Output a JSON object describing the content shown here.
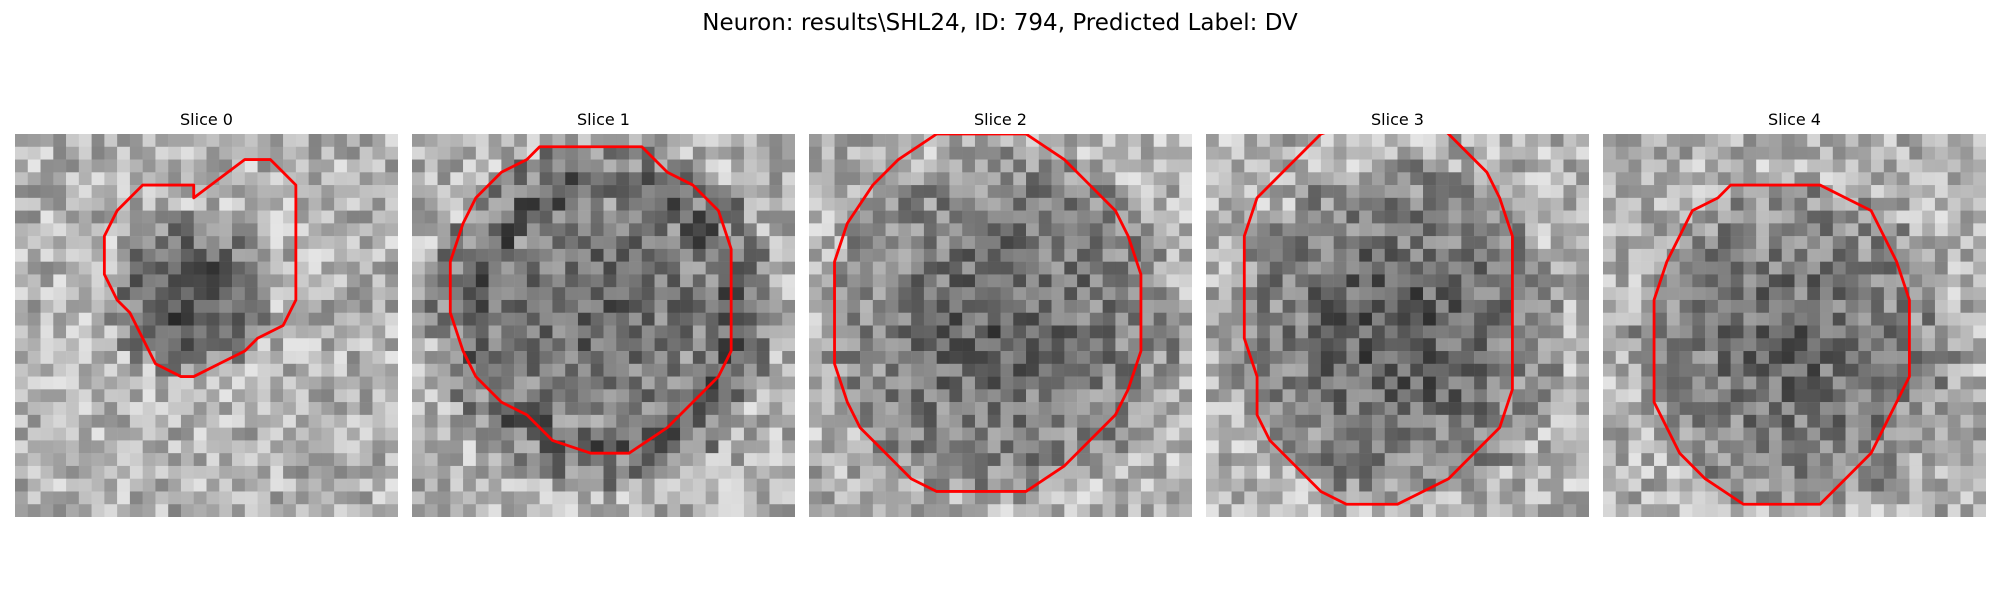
{
  "figure": {
    "title": "Neuron: results\\SHL24, ID: 794, Predicted Label: DV",
    "contour_color": "#ff0000",
    "colormap": "gray",
    "panels": [
      {
        "title": "Slice 0",
        "seed": 11,
        "dark_center": [
          0.46,
          0.42
        ],
        "dark_radius": 0.22,
        "dark_strength": 0.35,
        "ring": false,
        "contour": [
          [
            14,
            5
          ],
          [
            18,
            2
          ],
          [
            20,
            2
          ],
          [
            21,
            3
          ],
          [
            22,
            4
          ],
          [
            22,
            8
          ],
          [
            22,
            11
          ],
          [
            22,
            13
          ],
          [
            21,
            15
          ],
          [
            19,
            16
          ],
          [
            18,
            17
          ],
          [
            16,
            18
          ],
          [
            14,
            19
          ],
          [
            13,
            19
          ],
          [
            11,
            18
          ],
          [
            10,
            16
          ],
          [
            9,
            14
          ],
          [
            8,
            13
          ],
          [
            7,
            11
          ],
          [
            7,
            8
          ],
          [
            8,
            6
          ],
          [
            10,
            4
          ],
          [
            12,
            4
          ],
          [
            14,
            4
          ]
        ]
      },
      {
        "title": "Slice 1",
        "seed": 23,
        "dark_center": [
          0.5,
          0.47
        ],
        "dark_radius": 0.38,
        "dark_strength": 0.2,
        "ring": true,
        "contour": [
          [
            10,
            1
          ],
          [
            15,
            1
          ],
          [
            18,
            1
          ],
          [
            20,
            3
          ],
          [
            22,
            4
          ],
          [
            24,
            6
          ],
          [
            25,
            9
          ],
          [
            25,
            13
          ],
          [
            25,
            17
          ],
          [
            24,
            19
          ],
          [
            22,
            21
          ],
          [
            20,
            23
          ],
          [
            17,
            25
          ],
          [
            14,
            25
          ],
          [
            11,
            24
          ],
          [
            9,
            22
          ],
          [
            7,
            21
          ],
          [
            5,
            19
          ],
          [
            4,
            17
          ],
          [
            3,
            14
          ],
          [
            3,
            10
          ],
          [
            4,
            7
          ],
          [
            5,
            5
          ],
          [
            7,
            3
          ],
          [
            9,
            2
          ]
        ]
      },
      {
        "title": "Slice 2",
        "seed": 37,
        "dark_center": [
          0.5,
          0.5
        ],
        "dark_radius": 0.46,
        "dark_strength": 0.22,
        "ring": false,
        "contour": [
          [
            12,
            0
          ],
          [
            17,
            0
          ],
          [
            20,
            2
          ],
          [
            22,
            4
          ],
          [
            24,
            6
          ],
          [
            25,
            8
          ],
          [
            26,
            11
          ],
          [
            26,
            14
          ],
          [
            26,
            17
          ],
          [
            25,
            20
          ],
          [
            24,
            22
          ],
          [
            22,
            24
          ],
          [
            20,
            26
          ],
          [
            17,
            28
          ],
          [
            13,
            28
          ],
          [
            10,
            28
          ],
          [
            8,
            27
          ],
          [
            6,
            25
          ],
          [
            4,
            23
          ],
          [
            3,
            21
          ],
          [
            2,
            18
          ],
          [
            2,
            14
          ],
          [
            2,
            10
          ],
          [
            3,
            7
          ],
          [
            5,
            4
          ],
          [
            7,
            2
          ],
          [
            10,
            0
          ]
        ]
      },
      {
        "title": "Slice 3",
        "seed": 41,
        "dark_center": [
          0.5,
          0.52
        ],
        "dark_radius": 0.44,
        "dark_strength": 0.28,
        "ring": false,
        "contour": [
          [
            7,
            2
          ],
          [
            9,
            0
          ],
          [
            12,
            -1
          ],
          [
            18,
            -1
          ],
          [
            20,
            1
          ],
          [
            22,
            3
          ],
          [
            23,
            5
          ],
          [
            24,
            8
          ],
          [
            24,
            12
          ],
          [
            24,
            16
          ],
          [
            24,
            20
          ],
          [
            23,
            23
          ],
          [
            21,
            25
          ],
          [
            19,
            27
          ],
          [
            17,
            28
          ],
          [
            15,
            29
          ],
          [
            13,
            29
          ],
          [
            11,
            29
          ],
          [
            9,
            28
          ],
          [
            7,
            26
          ],
          [
            5,
            24
          ],
          [
            4,
            22
          ],
          [
            4,
            19
          ],
          [
            3,
            16
          ],
          [
            3,
            12
          ],
          [
            3,
            8
          ],
          [
            4,
            5
          ],
          [
            6,
            3
          ]
        ]
      },
      {
        "title": "Slice 4",
        "seed": 53,
        "dark_center": [
          0.5,
          0.56
        ],
        "dark_radius": 0.42,
        "dark_strength": 0.2,
        "ring": false,
        "contour": [
          [
            10,
            4
          ],
          [
            14,
            4
          ],
          [
            17,
            4
          ],
          [
            19,
            5
          ],
          [
            21,
            6
          ],
          [
            22,
            8
          ],
          [
            23,
            10
          ],
          [
            24,
            13
          ],
          [
            24,
            16
          ],
          [
            24,
            19
          ],
          [
            23,
            21
          ],
          [
            22,
            23
          ],
          [
            21,
            25
          ],
          [
            19,
            27
          ],
          [
            17,
            29
          ],
          [
            11,
            29
          ],
          [
            8,
            27
          ],
          [
            6,
            25
          ],
          [
            5,
            23
          ],
          [
            4,
            21
          ],
          [
            4,
            17
          ],
          [
            4,
            13
          ],
          [
            5,
            10
          ],
          [
            6,
            8
          ],
          [
            7,
            6
          ],
          [
            9,
            5
          ]
        ]
      }
    ]
  }
}
